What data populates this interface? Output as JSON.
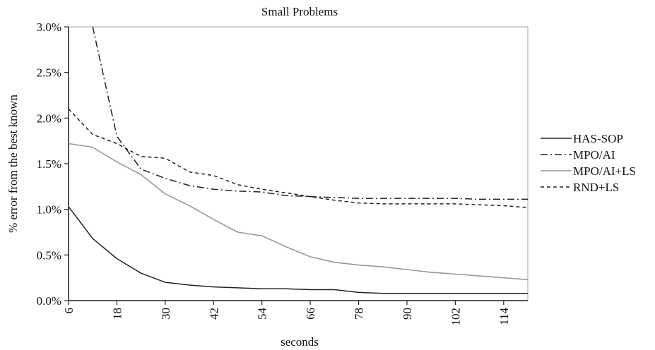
{
  "chart_data": {
    "type": "line",
    "title": "Small Problems",
    "xlabel": "seconds",
    "ylabel": "% error from the best known",
    "xlim": [
      6,
      120
    ],
    "ylim": [
      0,
      3.0
    ],
    "x_ticks": [
      6,
      18,
      30,
      42,
      54,
      66,
      78,
      90,
      102,
      114
    ],
    "x_tick_labels": [
      "6",
      "18",
      "30",
      "42",
      "54",
      "66",
      "78",
      "90",
      "102",
      "114"
    ],
    "y_ticks": [
      0,
      0.5,
      1.0,
      1.5,
      2.0,
      2.5,
      3.0
    ],
    "y_tick_labels": [
      "0.0%",
      "0.5%",
      "1.0%",
      "1.5%",
      "2.0%",
      "2.5%",
      "3.0%"
    ],
    "grid": false,
    "legend_position": "right",
    "x": [
      6,
      12,
      18,
      24,
      30,
      36,
      42,
      48,
      54,
      60,
      66,
      72,
      78,
      84,
      90,
      96,
      102,
      108,
      114,
      120
    ],
    "series": [
      {
        "name": "HAS-SOP",
        "style": "solid",
        "color": "#222222",
        "values": [
          1.03,
          0.68,
          0.46,
          0.3,
          0.2,
          0.17,
          0.15,
          0.14,
          0.13,
          0.13,
          0.12,
          0.12,
          0.09,
          0.08,
          0.08,
          0.08,
          0.08,
          0.08,
          0.08,
          0.08
        ]
      },
      {
        "name": "MPO/AI",
        "style": "dashdot",
        "color": "#222222",
        "values": [
          null,
          3.02,
          1.8,
          1.44,
          1.34,
          1.26,
          1.22,
          1.2,
          1.19,
          1.15,
          1.14,
          1.13,
          1.12,
          1.12,
          1.12,
          1.12,
          1.12,
          1.11,
          1.11,
          1.11
        ]
      },
      {
        "name": "MPO/AI+LS",
        "style": "solid",
        "color": "#9a9a9a",
        "values": [
          1.72,
          1.68,
          1.52,
          1.38,
          1.17,
          1.04,
          0.89,
          0.75,
          0.71,
          0.59,
          0.48,
          0.42,
          0.39,
          0.37,
          0.34,
          0.31,
          0.29,
          0.27,
          0.25,
          0.23
        ]
      },
      {
        "name": "RND+LS",
        "style": "dashed",
        "color": "#222222",
        "values": [
          2.1,
          1.82,
          1.72,
          1.58,
          1.56,
          1.41,
          1.37,
          1.27,
          1.22,
          1.18,
          1.14,
          1.1,
          1.07,
          1.06,
          1.06,
          1.06,
          1.06,
          1.05,
          1.04,
          1.02
        ]
      }
    ]
  }
}
